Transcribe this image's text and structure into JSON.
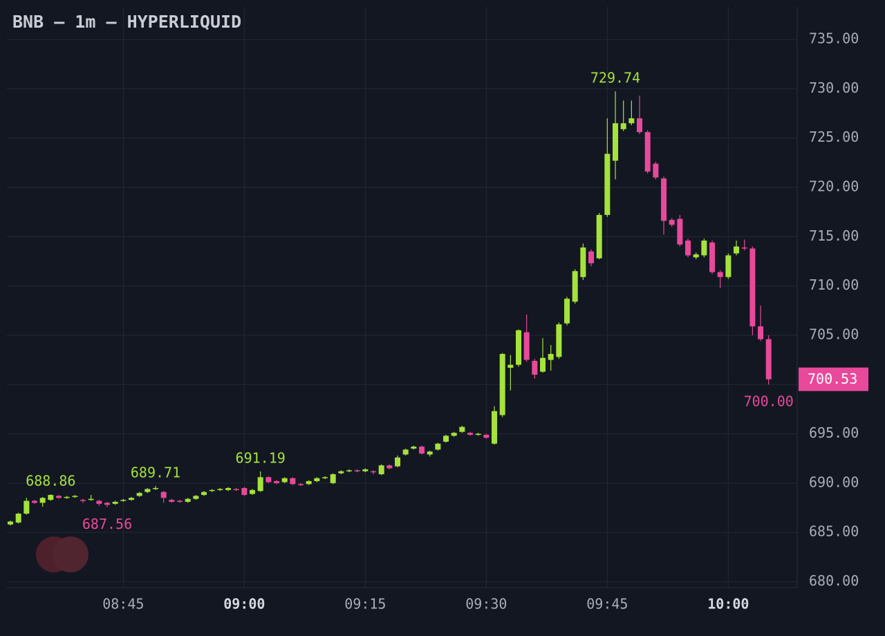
{
  "chart_data": {
    "type": "candlestick",
    "title": "BNB — 1m — HYPERLIQUID",
    "categories": [
      null,
      null,
      null,
      null,
      null,
      null,
      null,
      null,
      null,
      null,
      null,
      null,
      null,
      null,
      "08:45",
      null,
      null,
      null,
      null,
      null,
      null,
      null,
      null,
      null,
      null,
      null,
      null,
      null,
      null,
      "09:00",
      null,
      null,
      null,
      null,
      null,
      null,
      null,
      null,
      null,
      null,
      null,
      null,
      null,
      null,
      "09:15",
      null,
      null,
      null,
      null,
      null,
      null,
      null,
      null,
      null,
      null,
      null,
      null,
      null,
      null,
      "09:30",
      null,
      null,
      null,
      null,
      null,
      null,
      null,
      null,
      null,
      null,
      null,
      null,
      null,
      null,
      "09:45",
      null,
      null,
      null,
      null,
      null,
      null,
      null,
      null,
      null,
      null,
      null,
      null,
      null,
      null,
      "10:00",
      null,
      null,
      null,
      null,
      null
    ],
    "open": [
      685.8,
      686.0,
      686.9,
      688.2,
      688.0,
      688.3,
      688.7,
      688.5,
      688.6,
      688.3,
      688.3,
      688.2,
      688.0,
      687.9,
      688.2,
      688.3,
      688.7,
      689.1,
      689.4,
      689.1,
      688.3,
      688.2,
      688.1,
      688.4,
      688.8,
      689.2,
      689.3,
      689.3,
      689.4,
      689.5,
      688.9,
      689.2,
      690.6,
      690.2,
      690.1,
      690.5,
      689.9,
      689.9,
      690.2,
      690.5,
      690.0,
      691.0,
      691.2,
      691.3,
      691.2,
      691.2,
      690.9,
      691.8,
      691.7,
      692.9,
      693.5,
      693.7,
      692.9,
      693.4,
      694.2,
      694.8,
      695.2,
      695.1,
      694.9,
      694.9,
      694.0,
      696.9,
      701.7,
      702.0,
      705.3,
      702.4,
      701.3,
      702.5,
      702.8,
      706.2,
      708.4,
      710.9,
      713.5,
      712.8,
      717.2,
      722.7,
      725.9,
      726.5,
      727.0,
      725.6,
      722.4,
      720.9,
      716.7,
      716.8,
      714.6,
      712.9,
      713.1,
      714.4,
      711.4,
      710.9,
      713.3,
      713.9,
      713.8,
      705.9,
      704.6
    ],
    "high": [
      686.2,
      687.0,
      688.5,
      688.3,
      688.6,
      688.86,
      688.8,
      688.7,
      688.8,
      688.4,
      688.8,
      688.3,
      688.1,
      688.2,
      688.4,
      688.6,
      689.1,
      689.5,
      689.71,
      689.2,
      688.4,
      688.3,
      688.5,
      688.8,
      689.2,
      689.4,
      689.5,
      689.6,
      689.5,
      689.6,
      689.4,
      691.19,
      690.7,
      690.3,
      690.6,
      690.6,
      690.0,
      690.3,
      690.6,
      690.7,
      691.0,
      691.3,
      691.4,
      691.4,
      691.5,
      691.3,
      691.9,
      691.9,
      692.8,
      693.5,
      693.8,
      693.8,
      693.3,
      694.1,
      694.9,
      695.2,
      695.8,
      695.2,
      695.1,
      695.0,
      697.8,
      703.2,
      703.0,
      705.6,
      707.1,
      702.6,
      704.7,
      704.0,
      706.3,
      708.9,
      711.7,
      714.3,
      713.7,
      717.4,
      727.0,
      729.74,
      728.8,
      728.8,
      729.3,
      725.8,
      722.6,
      721.1,
      716.9,
      717.2,
      714.8,
      713.4,
      714.8,
      714.6,
      711.6,
      713.3,
      714.6,
      714.7,
      714.0,
      708.0,
      705.0
    ],
    "low": [
      685.7,
      685.9,
      686.8,
      687.9,
      687.6,
      688.2,
      688.4,
      688.4,
      688.5,
      688.0,
      688.2,
      687.7,
      687.56,
      687.8,
      688.1,
      688.2,
      688.6,
      689.0,
      689.3,
      688.0,
      688.0,
      688.0,
      688.0,
      688.3,
      688.7,
      689.1,
      689.2,
      689.2,
      689.2,
      688.7,
      688.8,
      689.1,
      690.0,
      689.9,
      690.0,
      689.8,
      689.7,
      689.8,
      690.1,
      690.4,
      689.9,
      690.9,
      691.1,
      691.1,
      691.1,
      690.9,
      690.8,
      691.4,
      691.6,
      692.8,
      693.4,
      692.9,
      692.7,
      693.3,
      694.1,
      694.7,
      695.1,
      694.8,
      694.8,
      694.5,
      693.9,
      696.7,
      699.4,
      701.8,
      702.3,
      700.6,
      701.2,
      701.4,
      702.6,
      706.0,
      708.2,
      710.6,
      712.0,
      712.7,
      717.0,
      720.8,
      725.7,
      726.3,
      725.4,
      721.4,
      720.8,
      715.2,
      716.0,
      714.0,
      712.9,
      712.7,
      712.9,
      711.2,
      709.8,
      710.7,
      713.1,
      713.6,
      705.0,
      704.4,
      700.0
    ],
    "close": [
      686.1,
      686.9,
      688.2,
      688.0,
      688.5,
      688.8,
      688.5,
      688.6,
      688.7,
      688.2,
      688.4,
      687.9,
      687.8,
      688.1,
      688.3,
      688.5,
      689.0,
      689.4,
      689.5,
      688.5,
      688.1,
      688.1,
      688.4,
      688.7,
      689.1,
      689.3,
      689.4,
      689.5,
      689.3,
      688.8,
      689.3,
      690.6,
      690.1,
      690.0,
      690.5,
      689.9,
      689.8,
      690.2,
      690.5,
      690.6,
      690.9,
      691.2,
      691.3,
      691.2,
      691.4,
      691.1,
      691.8,
      691.5,
      692.6,
      693.4,
      693.7,
      693.0,
      693.2,
      694.0,
      694.8,
      695.1,
      695.7,
      694.9,
      695.0,
      694.6,
      697.3,
      703.1,
      702.0,
      705.5,
      702.5,
      701.0,
      702.7,
      703.1,
      706.1,
      708.7,
      711.5,
      713.9,
      712.3,
      717.2,
      723.4,
      726.5,
      726.5,
      727.0,
      725.6,
      721.6,
      721.0,
      716.6,
      716.2,
      714.2,
      713.1,
      713.2,
      714.6,
      711.4,
      710.9,
      713.1,
      714.0,
      713.8,
      705.9,
      704.6,
      700.53
    ],
    "up_color": "#a6e23c",
    "down_color": "#e8499a",
    "ylim": [
      679.4,
      738.3
    ],
    "yticks": [
      {
        "value": 680,
        "label": "680.00"
      },
      {
        "value": 685,
        "label": "685.00"
      },
      {
        "value": 690,
        "label": "690.00"
      },
      {
        "value": 695,
        "label": "695.00"
      },
      {
        "value": 700,
        "label": "700.00"
      },
      {
        "value": 705,
        "label": "705.00"
      },
      {
        "value": 710,
        "label": "710.00"
      },
      {
        "value": 715,
        "label": "715.00"
      },
      {
        "value": 720,
        "label": "720.00"
      },
      {
        "value": 725,
        "label": "725.00"
      },
      {
        "value": 730,
        "label": "730.00"
      },
      {
        "value": 735,
        "label": "735.00"
      }
    ],
    "grid": true,
    "high_labels": [
      {
        "value": 688.86,
        "label": "688.86"
      },
      {
        "value": 689.71,
        "label": "689.71"
      },
      {
        "value": 691.19,
        "label": "691.19"
      },
      {
        "value": 729.74,
        "label": "729.74"
      }
    ],
    "low_labels": [
      {
        "value": 687.56,
        "label": "687.56"
      },
      {
        "value": 700.0,
        "label": "700.00"
      }
    ],
    "last_price": {
      "value": 700.53,
      "label": "700.53"
    }
  }
}
